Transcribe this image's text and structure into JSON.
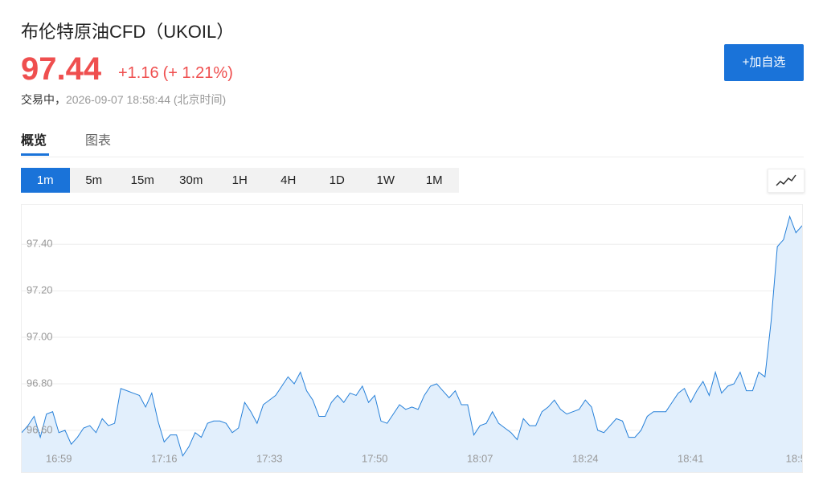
{
  "header": {
    "title": "布伦特原油CFD（UKOIL）",
    "price": "97.44",
    "change": "+1.16",
    "change_pct": "(+ 1.21%)",
    "status": "交易中，",
    "timestamp": "2026-09-07 18:58:44 (北京时间)",
    "watch_button": "+加自选"
  },
  "tabs": [
    "概览",
    "图表"
  ],
  "timeframes": [
    "1m",
    "5m",
    "15m",
    "30m",
    "1H",
    "4H",
    "1D",
    "1W",
    "1M"
  ],
  "chart_data": {
    "type": "area",
    "color": "#2680d9",
    "fill": "#e2effc",
    "grid": true,
    "ylim": [
      96.42,
      97.57
    ],
    "yticks": [
      {
        "value": 96.6,
        "label": "96.60"
      },
      {
        "value": 96.8,
        "label": "96.80"
      },
      {
        "value": 97.0,
        "label": "97.00"
      },
      {
        "value": 97.2,
        "label": "97.20"
      },
      {
        "value": 97.4,
        "label": "97.40"
      }
    ],
    "categories": [
      null,
      null,
      null,
      null,
      null,
      null,
      "16:59",
      null,
      null,
      null,
      null,
      null,
      null,
      null,
      null,
      null,
      null,
      null,
      null,
      null,
      null,
      null,
      null,
      "17:16",
      null,
      null,
      null,
      null,
      null,
      null,
      null,
      null,
      null,
      null,
      null,
      null,
      null,
      null,
      null,
      null,
      "17:33",
      null,
      null,
      null,
      null,
      null,
      null,
      null,
      null,
      null,
      null,
      null,
      null,
      null,
      null,
      null,
      null,
      "17:50",
      null,
      null,
      null,
      null,
      null,
      null,
      null,
      null,
      null,
      null,
      null,
      null,
      null,
      null,
      null,
      null,
      "18:07",
      null,
      null,
      null,
      null,
      null,
      null,
      null,
      null,
      null,
      null,
      null,
      null,
      null,
      null,
      null,
      null,
      "18:24",
      null,
      null,
      null,
      null,
      null,
      null,
      null,
      null,
      null,
      null,
      null,
      null,
      null,
      null,
      null,
      null,
      "18:41",
      null,
      null,
      null,
      null,
      null,
      null,
      null,
      null,
      null,
      null,
      null,
      null,
      null,
      null,
      null,
      null,
      "18:5",
      null
    ],
    "values": [
      96.59,
      96.62,
      96.66,
      96.57,
      96.67,
      96.68,
      96.59,
      96.6,
      96.54,
      96.57,
      96.61,
      96.62,
      96.59,
      96.65,
      96.62,
      96.63,
      96.78,
      96.77,
      96.76,
      96.75,
      96.7,
      96.76,
      96.64,
      96.55,
      96.58,
      96.58,
      96.49,
      96.53,
      96.59,
      96.57,
      96.63,
      96.64,
      96.64,
      96.63,
      96.59,
      96.61,
      96.72,
      96.68,
      96.63,
      96.71,
      96.73,
      96.75,
      96.79,
      96.83,
      96.8,
      96.85,
      96.77,
      96.73,
      96.66,
      96.66,
      96.72,
      96.75,
      96.72,
      96.76,
      96.75,
      96.79,
      96.72,
      96.75,
      96.64,
      96.63,
      96.67,
      96.71,
      96.69,
      96.7,
      96.69,
      96.75,
      96.79,
      96.8,
      96.77,
      96.74,
      96.77,
      96.71,
      96.71,
      96.58,
      96.62,
      96.63,
      96.68,
      96.63,
      96.61,
      96.59,
      96.56,
      96.65,
      96.62,
      96.62,
      96.68,
      96.7,
      96.73,
      96.69,
      96.67,
      96.68,
      96.69,
      96.73,
      96.7,
      96.6,
      96.59,
      96.62,
      96.65,
      96.64,
      96.57,
      96.57,
      96.6,
      96.66,
      96.68,
      96.68,
      96.68,
      96.72,
      96.76,
      96.78,
      96.72,
      96.77,
      96.81,
      96.75,
      96.85,
      96.76,
      96.79,
      96.8,
      96.85,
      96.77,
      96.77,
      96.85,
      96.83,
      97.07,
      97.39,
      97.42,
      97.52,
      97.45,
      97.48
    ]
  }
}
